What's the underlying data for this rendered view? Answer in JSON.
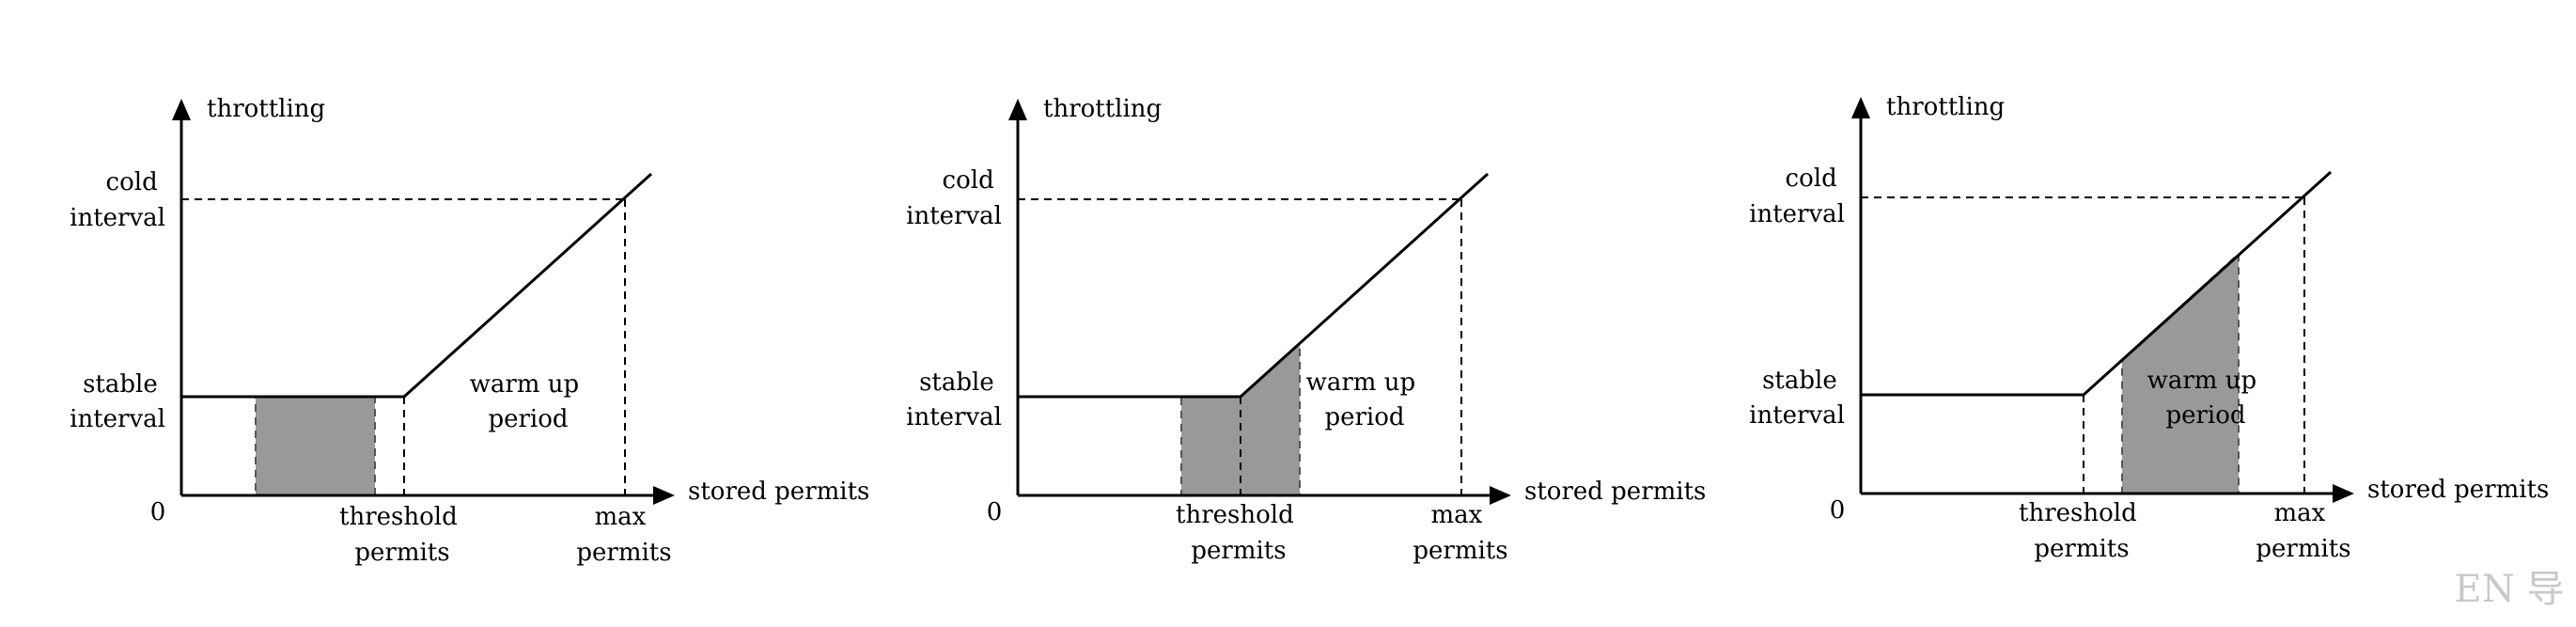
{
  "colors": {
    "line": "#000000",
    "shade_fill": "#999999",
    "shade_edge": "#555555",
    "watermark": "#c9c9c9",
    "background": "#ffffff"
  },
  "labels": {
    "y_axis": "throttling",
    "x_axis": "stored permits",
    "origin": "0",
    "cold_interval": [
      "cold",
      "interval"
    ],
    "stable_interval": [
      "stable",
      "interval"
    ],
    "threshold_permits": [
      "threshold",
      "permits"
    ],
    "max_permits": [
      "max",
      "permits"
    ],
    "warm_up_period": [
      "warm up",
      "period"
    ]
  },
  "watermark": "EN 导",
  "panels": [
    {
      "id": "left",
      "shaded": "flat-segment-before-threshold"
    },
    {
      "id": "middle",
      "shaded": "straddles-threshold"
    },
    {
      "id": "right",
      "shaded": "sloped-segment-after-threshold"
    }
  ]
}
